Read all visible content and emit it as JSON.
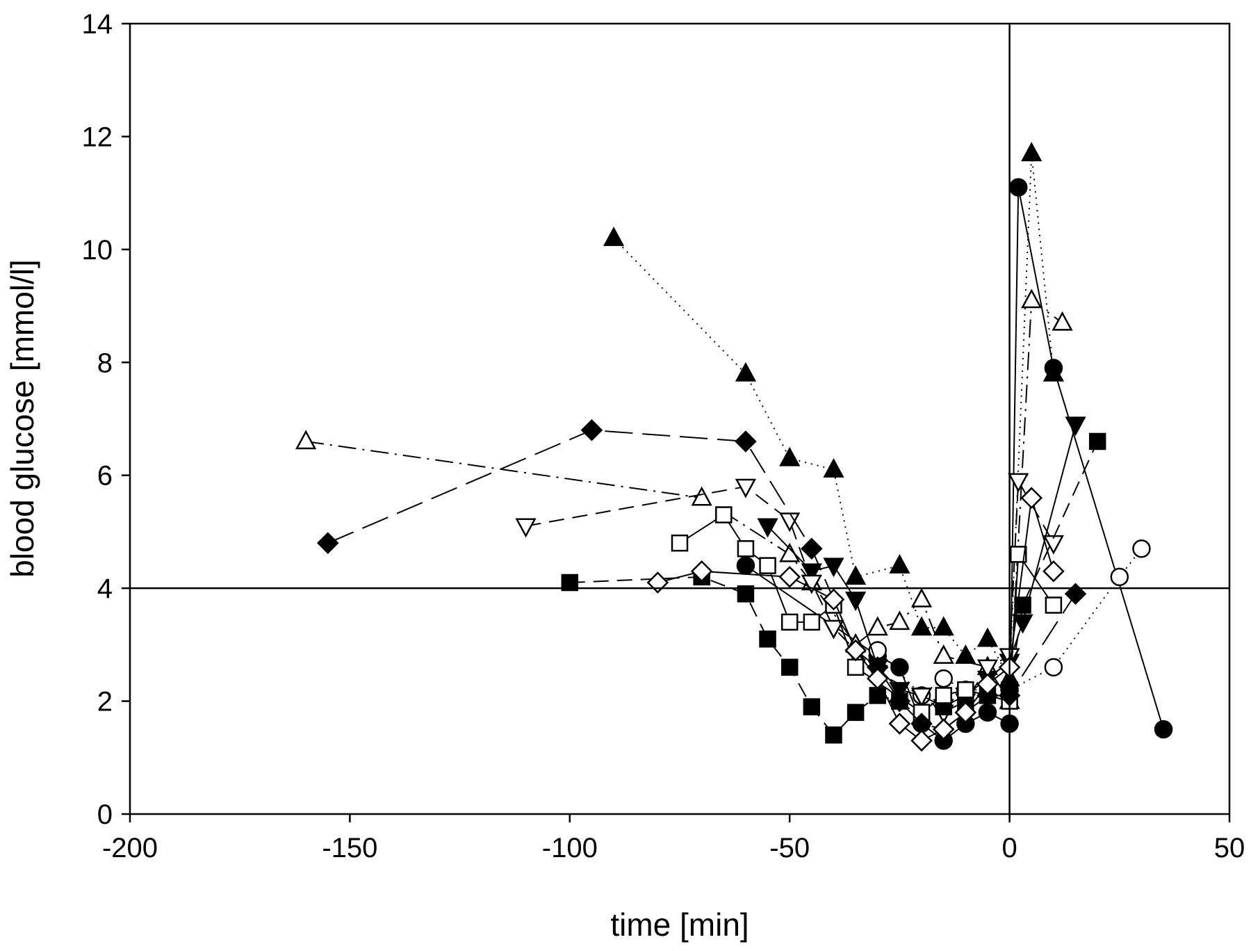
{
  "chart_data": {
    "type": "scatter",
    "title": "",
    "xlabel": "time [min]",
    "ylabel": "blood glucose [mmol/l]",
    "xlim": [
      -200,
      50
    ],
    "ylim": [
      0,
      14
    ],
    "xticks": [
      -200,
      -150,
      -100,
      -50,
      0,
      50
    ],
    "yticks": [
      0,
      2,
      4,
      6,
      8,
      10,
      12,
      14
    ],
    "xtick_labels": [
      "-200",
      "-150",
      "-100",
      "-50",
      "0",
      "50"
    ],
    "ytick_labels": [
      "0",
      "2",
      "4",
      "6",
      "8",
      "10",
      "12",
      "14"
    ],
    "grid": false,
    "reference_lines": {
      "y": 4,
      "x": 0
    },
    "series": [
      {
        "marker": "filled-circle",
        "line": "solid",
        "x": [
          -60,
          -30,
          -25,
          -20,
          -15,
          -10,
          -5,
          0,
          2,
          10,
          35
        ],
        "y": [
          4.4,
          2.8,
          2.6,
          1.6,
          1.3,
          1.6,
          1.8,
          1.6,
          11.1,
          7.9,
          1.5
        ]
      },
      {
        "marker": "open-circle",
        "line": "dotted",
        "x": [
          -30,
          -20,
          -15,
          -10,
          0,
          10,
          25,
          30
        ],
        "y": [
          2.9,
          2.1,
          2.4,
          2.2,
          2.2,
          2.6,
          4.2,
          4.7
        ]
      },
      {
        "marker": "filled-triangle-up",
        "line": "dotted",
        "x": [
          -90,
          -60,
          -50,
          -40,
          -35,
          -25,
          -20,
          -15,
          -10,
          -5,
          0,
          5,
          10
        ],
        "y": [
          10.2,
          7.8,
          6.3,
          6.1,
          4.2,
          4.4,
          3.3,
          3.3,
          2.8,
          3.1,
          2.4,
          11.7,
          7.8
        ]
      },
      {
        "marker": "open-triangle-up",
        "line": "dash-dot",
        "x": [
          -160,
          -70,
          -50,
          -45,
          -35,
          -30,
          -25,
          -20,
          -15,
          -5,
          0,
          5,
          12
        ],
        "y": [
          6.6,
          5.6,
          4.6,
          4.1,
          3.0,
          3.3,
          3.4,
          3.8,
          2.8,
          2.6,
          2.0,
          9.1,
          8.7
        ]
      },
      {
        "marker": "filled-triangle-down",
        "line": "solid",
        "x": [
          -55,
          -45,
          -40,
          -35,
          -30,
          -25,
          -20,
          -15,
          -10,
          -5,
          0,
          3,
          15
        ],
        "y": [
          5.1,
          4.3,
          4.4,
          3.8,
          2.6,
          2.2,
          2.1,
          1.9,
          2.1,
          2.4,
          2.7,
          3.4,
          6.9
        ]
      },
      {
        "marker": "open-triangle-down",
        "line": "dashed",
        "x": [
          -110,
          -60,
          -50,
          -45,
          -40,
          -30,
          -20,
          -15,
          -10,
          -5,
          0,
          2,
          10
        ],
        "y": [
          5.1,
          5.8,
          5.2,
          4.1,
          3.3,
          2.5,
          2.1,
          1.8,
          2.0,
          2.6,
          2.8,
          5.9,
          4.8
        ]
      },
      {
        "marker": "filled-square",
        "line": "dashed",
        "x": [
          -100,
          -70,
          -60,
          -55,
          -50,
          -45,
          -40,
          -35,
          -30,
          -25,
          -20,
          -15,
          -10,
          -5,
          0,
          3,
          20
        ],
        "y": [
          4.1,
          4.2,
          3.9,
          3.1,
          2.6,
          1.9,
          1.4,
          1.8,
          2.1,
          2.0,
          1.7,
          1.9,
          1.9,
          2.1,
          2.2,
          3.7,
          6.6
        ]
      },
      {
        "marker": "open-square",
        "line": "solid",
        "x": [
          -75,
          -65,
          -60,
          -55,
          -50,
          -45,
          -40,
          -35,
          -20,
          -15,
          -10,
          0,
          2,
          10
        ],
        "y": [
          4.8,
          5.3,
          4.7,
          4.4,
          3.4,
          3.4,
          3.7,
          2.6,
          1.8,
          2.1,
          2.2,
          2.0,
          4.6,
          3.7
        ]
      },
      {
        "marker": "filled-diamond",
        "line": "long-dash",
        "x": [
          -155,
          -95,
          -60,
          -45,
          -35,
          -30,
          -25,
          -20,
          -15,
          -10,
          -5,
          0,
          15
        ],
        "y": [
          4.8,
          6.8,
          6.6,
          4.7,
          2.9,
          2.6,
          2.0,
          1.6,
          1.5,
          1.8,
          2.1,
          2.1,
          3.9
        ]
      },
      {
        "marker": "open-diamond",
        "line": "solid",
        "x": [
          -80,
          -70,
          -50,
          -40,
          -35,
          -30,
          -25,
          -20,
          -15,
          -10,
          -5,
          0,
          5,
          10
        ],
        "y": [
          4.1,
          4.3,
          4.2,
          3.8,
          2.9,
          2.4,
          1.6,
          1.3,
          1.5,
          1.8,
          2.3,
          2.6,
          5.6,
          4.3
        ]
      }
    ]
  }
}
